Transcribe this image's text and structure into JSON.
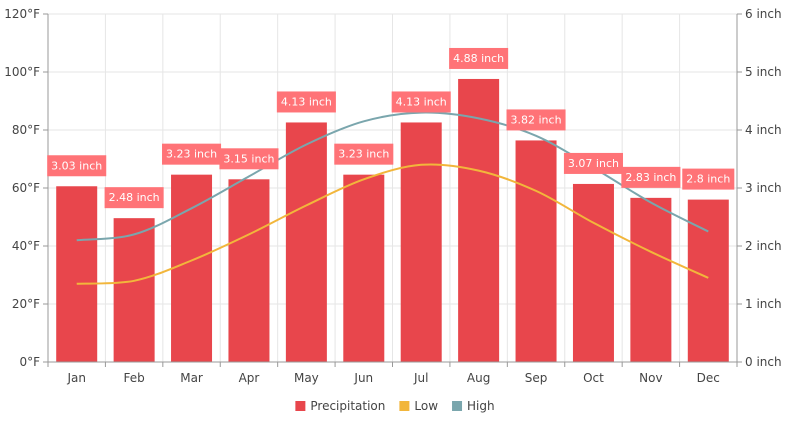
{
  "chart_data": {
    "type": "bar",
    "categories": [
      "Jan",
      "Feb",
      "Mar",
      "Apr",
      "May",
      "Jun",
      "Jul",
      "Aug",
      "Sep",
      "Oct",
      "Nov",
      "Dec"
    ],
    "series": [
      {
        "name": "Precipitation",
        "type": "bar",
        "axis": "right",
        "color": "#e8464c",
        "values": [
          3.03,
          2.48,
          3.23,
          3.15,
          4.13,
          3.23,
          4.13,
          4.88,
          3.82,
          3.07,
          2.83,
          2.8
        ],
        "labels": [
          "3.03 inch",
          "2.48 inch",
          "3.23 inch",
          "3.15 inch",
          "4.13 inch",
          "3.23 inch",
          "4.13 inch",
          "4.88 inch",
          "3.82 inch",
          "3.07 inch",
          "2.83 inch",
          "2.8 inch"
        ]
      },
      {
        "name": "Low",
        "type": "line",
        "axis": "left",
        "color": "#f2b63b",
        "values": [
          27,
          28,
          35,
          44,
          54,
          63,
          68,
          66,
          59,
          48,
          38,
          29
        ]
      },
      {
        "name": "High",
        "type": "line",
        "axis": "left",
        "color": "#7aa6ad",
        "values": [
          42,
          44,
          53,
          64,
          75,
          83,
          86,
          84,
          78,
          67,
          55,
          45
        ]
      }
    ],
    "left_axis": {
      "min": 0,
      "max": 120,
      "step": 20,
      "tick_labels": [
        "0°F",
        "20°F",
        "40°F",
        "60°F",
        "80°F",
        "100°F",
        "120°F"
      ]
    },
    "right_axis": {
      "min": 0,
      "max": 6,
      "step": 1,
      "tick_labels": [
        "0 inch",
        "1 inch",
        "2 inch",
        "3 inch",
        "4 inch",
        "5 inch",
        "6 inch"
      ]
    },
    "grid": true,
    "legend_position": "bottom-center",
    "label_box_color": "#ff7377"
  }
}
